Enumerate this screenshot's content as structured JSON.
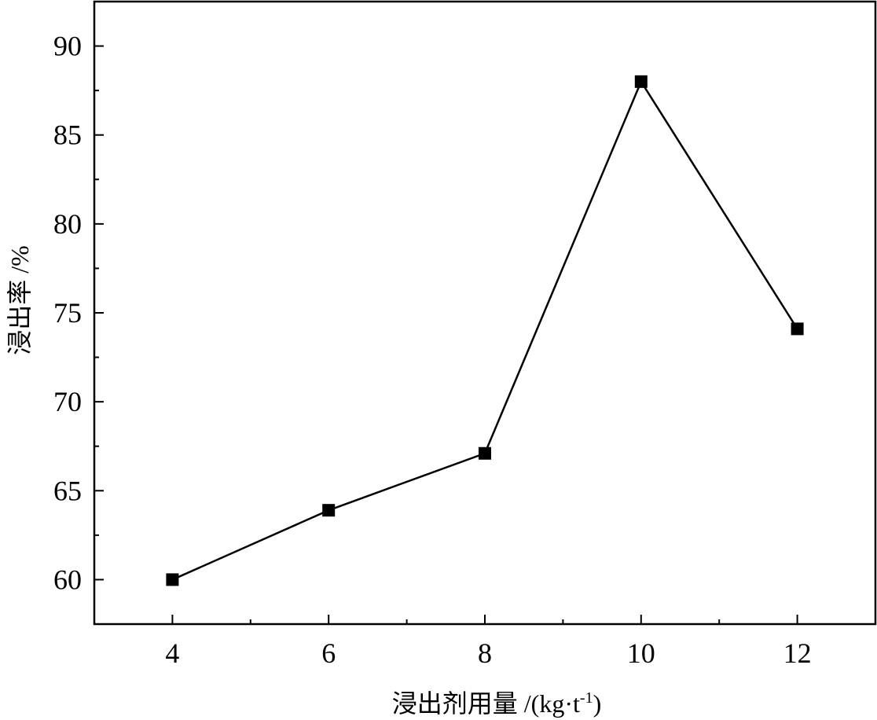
{
  "chart_data": {
    "type": "line",
    "title": "",
    "xlabel": "浸出剂用量 /(kg·t",
    "xlabel_sup": "-1",
    "xlabel_suffix": ")",
    "ylabel": "浸出率 /%",
    "xlim": [
      3,
      13
    ],
    "ylim": [
      57.5,
      92.5
    ],
    "x_ticks": [
      4,
      6,
      8,
      10,
      12
    ],
    "x_minor_ticks": [
      5,
      7,
      9,
      11
    ],
    "y_ticks": [
      60,
      65,
      70,
      75,
      80,
      85,
      90
    ],
    "y_minor_ticks": [
      57.5,
      62.5,
      67.5,
      72.5,
      77.5,
      82.5,
      87.5
    ],
    "grid": false,
    "legend": "none",
    "series": [
      {
        "x": [
          4,
          6,
          8,
          10,
          12
        ],
        "values": [
          60.0,
          63.9,
          67.1,
          88.0,
          74.1
        ],
        "marker": "square",
        "color": "#000000"
      }
    ]
  }
}
